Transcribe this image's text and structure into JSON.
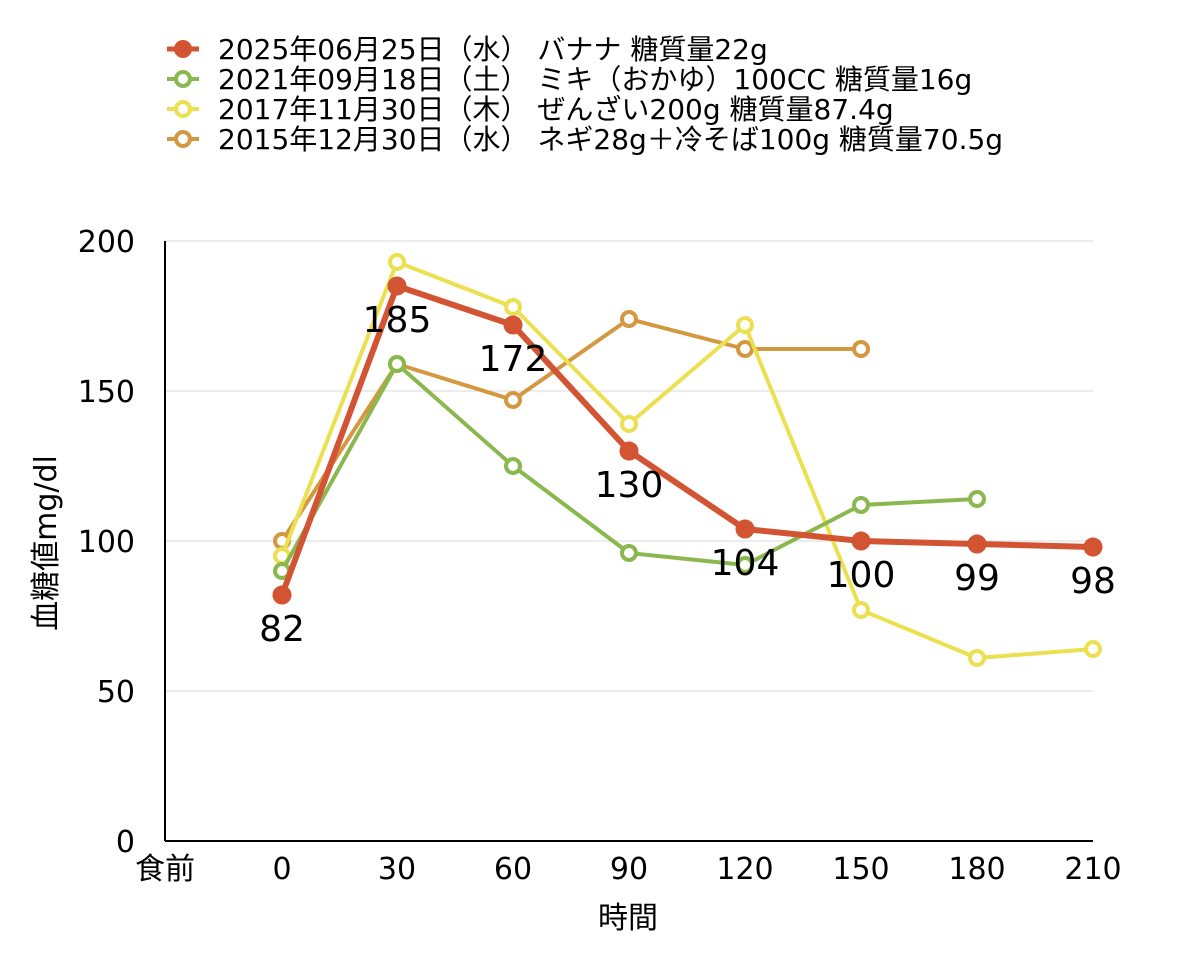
{
  "chart_data": {
    "type": "line",
    "title": "",
    "xlabel": "時間",
    "ylabel": "血糖値mg/dl",
    "x_first_label": "食前",
    "x": [
      0,
      30,
      60,
      90,
      120,
      150,
      180,
      210
    ],
    "ylim": [
      0,
      200
    ],
    "yticks": [
      0,
      50,
      100,
      150,
      200
    ],
    "grid": true,
    "legend_position": "top",
    "series": [
      {
        "name": "2025年06月25日（水） バナナ 糖質量22g",
        "color": "#d35433",
        "marker": "filled",
        "values": [
          82,
          185,
          172,
          130,
          104,
          100,
          99,
          98
        ],
        "labels": [
          "82",
          "185",
          "172",
          "130",
          "104",
          "100",
          "99",
          "98"
        ]
      },
      {
        "name": "2021年09月18日（土） ミキ（おかゆ）100CC 糖質量16g",
        "color": "#8ab84e",
        "marker": "hollow",
        "values": [
          90,
          159,
          125,
          96,
          92,
          112,
          114,
          null
        ]
      },
      {
        "name": "2017年11月30日（木） ぜんざい200g 糖質量87.4g",
        "color": "#ebe04f",
        "marker": "hollow",
        "values": [
          95,
          193,
          178,
          139,
          172,
          77,
          61,
          64
        ]
      },
      {
        "name": "2015年12月30日（水） ネギ28g＋冷そば100g 糖質量70.5g",
        "color": "#d49840",
        "marker": "hollow",
        "values": [
          100,
          159,
          147,
          174,
          164,
          164,
          null,
          null
        ]
      }
    ]
  }
}
